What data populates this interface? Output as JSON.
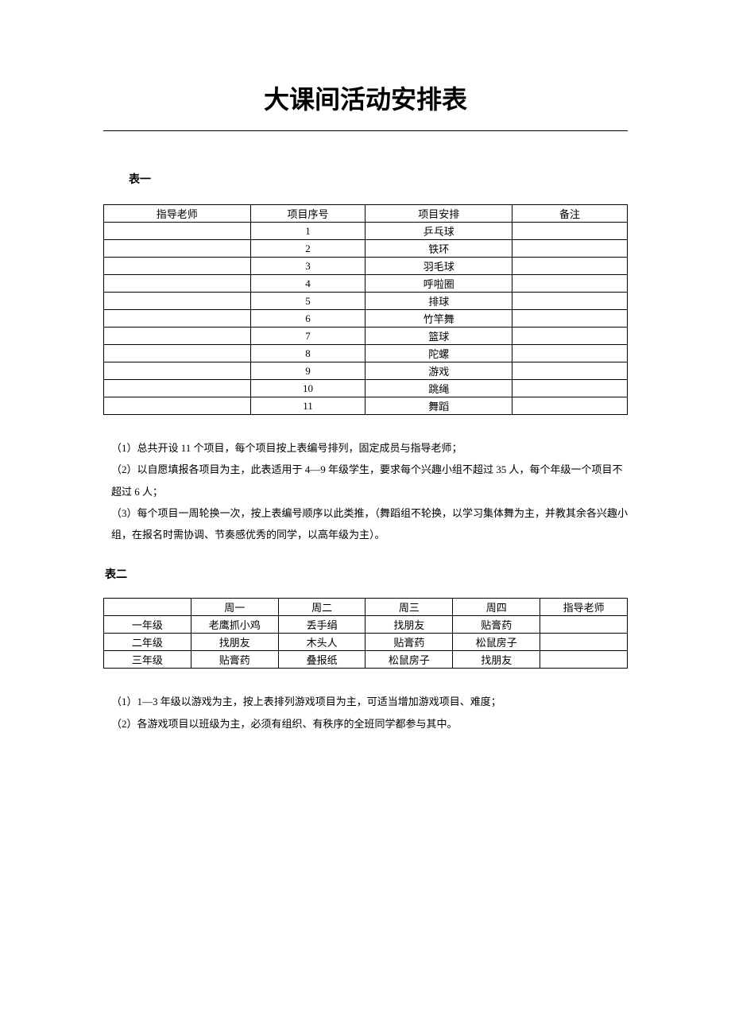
{
  "title": "大课间活动安排表",
  "table1": {
    "label": "表一",
    "headers": [
      "指导老师",
      "项目序号",
      "项目安排",
      "备注"
    ],
    "rows": [
      [
        "",
        "1",
        "乒乓球",
        ""
      ],
      [
        "",
        "2",
        "铁环",
        ""
      ],
      [
        "",
        "3",
        "羽毛球",
        ""
      ],
      [
        "",
        "4",
        "呼啦圈",
        ""
      ],
      [
        "",
        "5",
        "排球",
        ""
      ],
      [
        "",
        "6",
        "竹竿舞",
        ""
      ],
      [
        "",
        "7",
        "篮球",
        ""
      ],
      [
        "",
        "8",
        "陀螺",
        ""
      ],
      [
        "",
        "9",
        "游戏",
        ""
      ],
      [
        "",
        "10",
        "跳绳",
        ""
      ],
      [
        "",
        "11",
        "舞蹈",
        ""
      ]
    ],
    "notes": [
      "（1）总共开设 11 个项目，每个项目按上表编号排列，固定成员与指导老师；",
      "（2）以自愿填报各项目为主，此表适用于 4—9 年级学生，要求每个兴趣小组不超过 35 人，每个年级一个项目不超过 6 人；",
      "（3）每个项目一周轮换一次，按上表编号顺序以此类推，（舞蹈组不轮换，以学习集体舞为主，并教其余各兴趣小组，在报名时需协调、节奏感优秀的同学，以高年级为主）。"
    ]
  },
  "table2": {
    "label": "表二",
    "headers": [
      "",
      "周一",
      "周二",
      "周三",
      "周四",
      "指导老师"
    ],
    "rows": [
      [
        "一年级",
        "老鹰抓小鸡",
        "丢手绢",
        "找朋友",
        "贴膏药",
        ""
      ],
      [
        "二年级",
        "找朋友",
        "木头人",
        "贴膏药",
        "松鼠房子",
        ""
      ],
      [
        "三年级",
        "贴膏药",
        "叠报纸",
        "松鼠房子",
        "找朋友",
        ""
      ]
    ],
    "notes": [
      "（1）1—3 年级以游戏为主，按上表排列游戏项目为主，可适当增加游戏项目、难度；",
      "（2）各游戏项目以班级为主，必须有组织、有秩序的全班同学都参与其中。"
    ]
  }
}
